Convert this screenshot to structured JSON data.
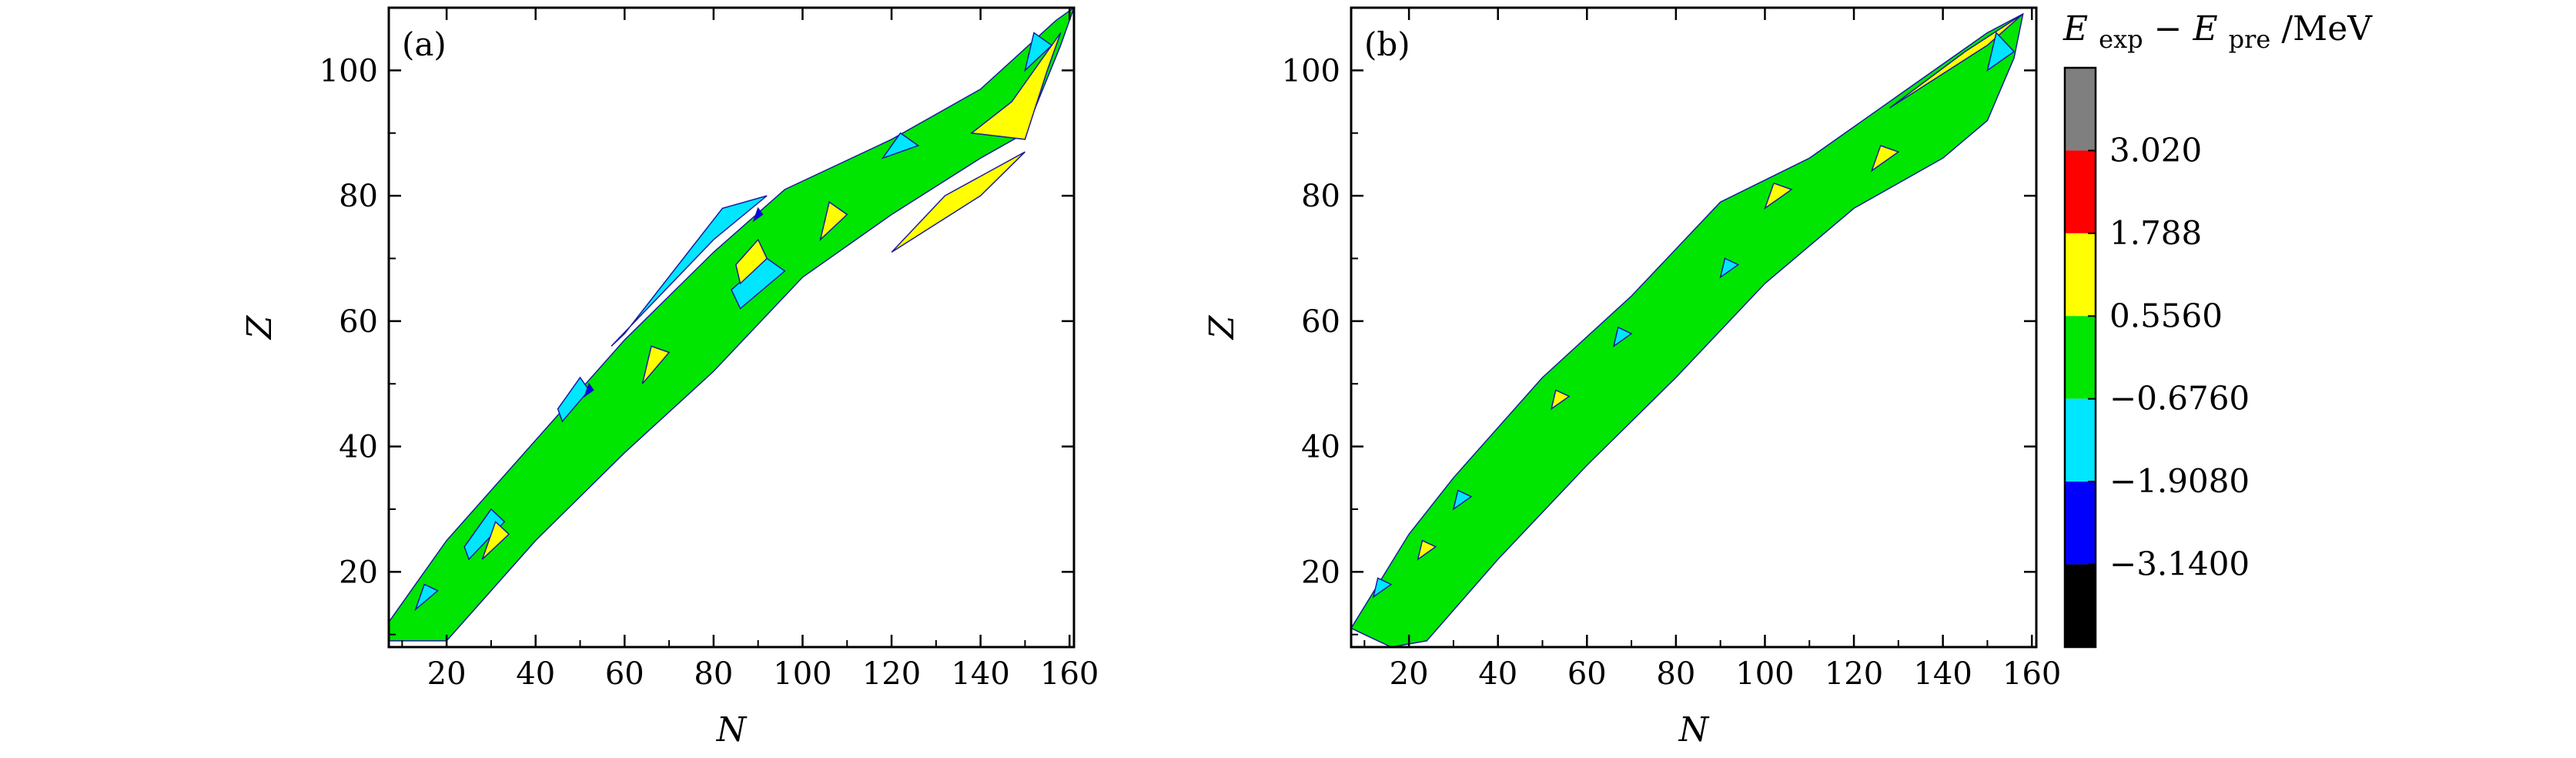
{
  "chart_data": [
    {
      "type": "contour",
      "panel_label": "(a)",
      "xlabel": "N",
      "ylabel": "Z",
      "xlim": [
        7,
        161
      ],
      "ylim": [
        8,
        110
      ],
      "xticks": [
        20,
        40,
        60,
        80,
        100,
        120,
        140,
        160
      ],
      "yticks": [
        20,
        40,
        60,
        80,
        100
      ],
      "region_outline": [
        [
          7,
          9
        ],
        [
          20,
          9
        ],
        [
          40,
          25
        ],
        [
          60,
          39
        ],
        [
          80,
          52
        ],
        [
          100,
          67
        ],
        [
          120,
          77
        ],
        [
          140,
          86
        ],
        [
          150,
          90
        ],
        [
          158,
          104
        ],
        [
          161,
          110
        ],
        [
          157,
          108
        ],
        [
          140,
          97
        ],
        [
          120,
          89
        ],
        [
          96,
          81
        ],
        [
          80,
          71
        ],
        [
          60,
          57
        ],
        [
          40,
          41
        ],
        [
          20,
          25
        ],
        [
          7,
          12
        ]
      ],
      "dominant_level": "-0.6760 to 0.5560",
      "features": [
        {
          "level": "0.5560 to 1.788",
          "polygon": [
            [
              138,
              90
            ],
            [
              150,
              89
            ],
            [
              155,
              100
            ],
            [
              158,
              106
            ],
            [
              147,
              95
            ]
          ]
        },
        {
          "level": "0.5560 to 1.788",
          "polygon": [
            [
              120,
              71
            ],
            [
              140,
              80
            ],
            [
              150,
              87
            ],
            [
              132,
              80
            ]
          ]
        },
        {
          "level": "-1.9080 to -0.6760",
          "polygon": [
            [
              57,
              56
            ],
            [
              80,
              73
            ],
            [
              92,
              80
            ],
            [
              82,
              78
            ],
            [
              60,
              58
            ]
          ]
        },
        {
          "level": "-1.9080 to -0.6760",
          "polygon": [
            [
              46,
              44
            ],
            [
              52,
              49
            ],
            [
              50,
              51
            ],
            [
              45,
              46
            ]
          ]
        },
        {
          "level": "-1.9080 to -0.6760",
          "polygon": [
            [
              86,
              62
            ],
            [
              96,
              68
            ],
            [
              92,
              70
            ],
            [
              84,
              65
            ]
          ]
        },
        {
          "level": "0.5560 to 1.788",
          "polygon": [
            [
              86,
              66
            ],
            [
              92,
              70
            ],
            [
              90,
              73
            ],
            [
              85,
              69
            ]
          ]
        },
        {
          "level": "-1.9080 to -0.6760",
          "polygon": [
            [
              25,
              22
            ],
            [
              33,
              28
            ],
            [
              30,
              30
            ],
            [
              24,
              24
            ]
          ]
        },
        {
          "level": "0.5560 to 1.788",
          "polygon": [
            [
              28,
              22
            ],
            [
              34,
              26
            ],
            [
              31,
              28
            ]
          ]
        },
        {
          "level": "-1.9080 to -0.6760",
          "polygon": [
            [
              118,
              86
            ],
            [
              126,
              88
            ],
            [
              122,
              90
            ]
          ]
        },
        {
          "level": "-1.9080 to -0.6760",
          "polygon": [
            [
              150,
              100
            ],
            [
              156,
              104
            ],
            [
              152,
              106
            ]
          ]
        },
        {
          "level": "-1.9080 to -0.6760",
          "polygon": [
            [
              13,
              14
            ],
            [
              18,
              17
            ],
            [
              15,
              18
            ]
          ]
        },
        {
          "level": "0.5560 to 1.788",
          "polygon": [
            [
              64,
              50
            ],
            [
              70,
              55
            ],
            [
              66,
              56
            ]
          ]
        },
        {
          "level": "0.5560 to 1.788",
          "polygon": [
            [
              104,
              73
            ],
            [
              110,
              77
            ],
            [
              106,
              79
            ]
          ]
        },
        {
          "level": "-3.1400 to -1.9080",
          "polygon": [
            [
              51,
              48
            ],
            [
              53,
              49
            ],
            [
              52,
              50
            ]
          ]
        },
        {
          "level": "-3.1400 to -1.9080",
          "polygon": [
            [
              89,
              76
            ],
            [
              91,
              77
            ],
            [
              90,
              78
            ]
          ]
        }
      ]
    },
    {
      "type": "contour",
      "panel_label": "(b)",
      "xlabel": "N",
      "ylabel": "Z",
      "xlim": [
        7,
        161
      ],
      "ylim": [
        8,
        110
      ],
      "xticks": [
        20,
        40,
        60,
        80,
        100,
        120,
        140,
        160
      ],
      "yticks": [
        20,
        40,
        60,
        80,
        100
      ],
      "region_outline": [
        [
          7,
          11
        ],
        [
          16,
          8
        ],
        [
          24,
          9
        ],
        [
          40,
          22
        ],
        [
          60,
          37
        ],
        [
          80,
          51
        ],
        [
          100,
          66
        ],
        [
          120,
          78
        ],
        [
          140,
          86
        ],
        [
          150,
          92
        ],
        [
          156,
          102
        ],
        [
          158,
          109
        ],
        [
          150,
          106
        ],
        [
          130,
          96
        ],
        [
          110,
          86
        ],
        [
          90,
          79
        ],
        [
          70,
          64
        ],
        [
          50,
          51
        ],
        [
          30,
          35
        ],
        [
          20,
          26
        ]
      ],
      "dominant_level": "-0.6760 to 0.5560",
      "features": [
        {
          "level": "0.5560 to 1.788",
          "polygon": [
            [
              128,
              94
            ],
            [
              150,
              104
            ],
            [
              158,
              109
            ],
            [
              145,
              103
            ]
          ]
        },
        {
          "level": "-1.9080 to -0.6760",
          "polygon": [
            [
              150,
              100
            ],
            [
              156,
              103
            ],
            [
              152,
              106
            ]
          ]
        },
        {
          "level": "0.5560 to 1.788",
          "polygon": [
            [
              100,
              78
            ],
            [
              106,
              81
            ],
            [
              102,
              82
            ]
          ]
        },
        {
          "level": "0.5560 to 1.788",
          "polygon": [
            [
              124,
              84
            ],
            [
              130,
              87
            ],
            [
              126,
              88
            ]
          ]
        },
        {
          "level": "-1.9080 to -0.6760",
          "polygon": [
            [
              90,
              67
            ],
            [
              94,
              69
            ],
            [
              91,
              70
            ]
          ]
        },
        {
          "level": "-1.9080 to -0.6760",
          "polygon": [
            [
              66,
              56
            ],
            [
              70,
              58
            ],
            [
              67,
              59
            ]
          ]
        },
        {
          "level": "0.5560 to 1.788",
          "polygon": [
            [
              52,
              46
            ],
            [
              56,
              48
            ],
            [
              53,
              49
            ]
          ]
        },
        {
          "level": "-1.9080 to -0.6760",
          "polygon": [
            [
              30,
              30
            ],
            [
              34,
              32
            ],
            [
              31,
              33
            ]
          ]
        },
        {
          "level": "0.5560 to 1.788",
          "polygon": [
            [
              22,
              22
            ],
            [
              26,
              24
            ],
            [
              23,
              25
            ]
          ]
        },
        {
          "level": "-1.9080 to -0.6760",
          "polygon": [
            [
              12,
              16
            ],
            [
              16,
              18
            ],
            [
              13,
              19
            ]
          ]
        }
      ]
    }
  ],
  "colorbar": {
    "title_main": "E",
    "sub_exp": "exp",
    "sub_pre": "pre",
    "minus": "−",
    "unit": "/MeV",
    "levels": [
      {
        "range": "> 3.020",
        "color": "#7f7f7f"
      },
      {
        "range": "1.788 to 3.020",
        "color": "#ff0000"
      },
      {
        "range": "0.5560 to 1.788",
        "color": "#ffff00"
      },
      {
        "range": "-0.6760 to 0.5560",
        "color": "#00e600"
      },
      {
        "range": "-1.9080 to -0.6760",
        "color": "#00e6ff"
      },
      {
        "range": "-3.1400 to -1.9080",
        "color": "#0000ff"
      },
      {
        "range": "< -3.1400",
        "color": "#000000"
      }
    ],
    "tick_labels": [
      "3.020",
      "1.788",
      "0.5560",
      "−0.6760",
      "−1.9080",
      "−3.1400"
    ]
  },
  "colors": {
    "background": "#ffffff",
    "axis": "#000000",
    "outline": "#1a1aa0"
  }
}
